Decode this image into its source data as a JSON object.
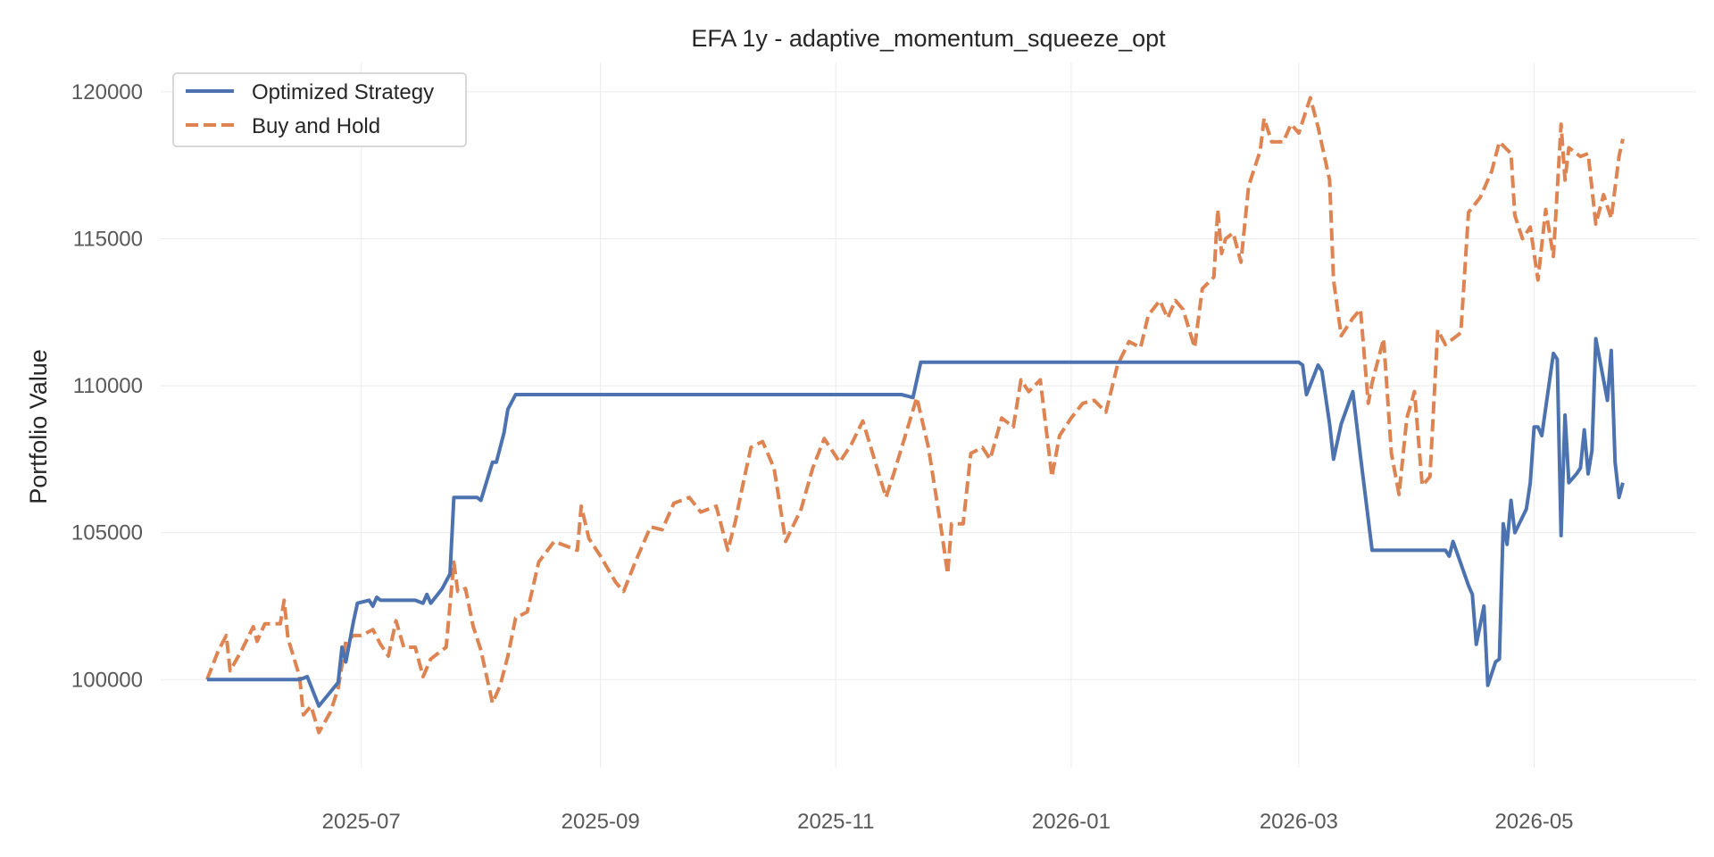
{
  "chart_data": {
    "type": "line",
    "title": "EFA 1y - adaptive_momentum_squeeze_opt",
    "xlabel": "",
    "ylabel": "Portfolio Value",
    "xlim": [
      "2025-05-10",
      "2026-06-12"
    ],
    "ylim": [
      97000,
      121000
    ],
    "grid": true,
    "legend_position": "top-left",
    "x_ticks": [
      "2025-07-01",
      "2025-09-01",
      "2025-11-01",
      "2026-01-01",
      "2026-03-01",
      "2026-05-01"
    ],
    "x_tick_labels": [
      "2025-07",
      "2025-09",
      "2025-11",
      "2026-01",
      "2026-03",
      "2026-05"
    ],
    "y_ticks": [
      100000,
      105000,
      110000,
      115000,
      120000
    ],
    "y_tick_labels": [
      "100000",
      "105000",
      "110000",
      "115000",
      "120000"
    ],
    "series": [
      {
        "name": "Optimized Strategy",
        "color": "#4c72b0",
        "style": "solid",
        "points": [
          [
            "2025-05-22",
            100000
          ],
          [
            "2025-06-15",
            100000
          ],
          [
            "2025-06-17",
            100100
          ],
          [
            "2025-06-20",
            99100
          ],
          [
            "2025-06-25",
            99900
          ],
          [
            "2025-06-26",
            101100
          ],
          [
            "2025-06-27",
            100600
          ],
          [
            "2025-06-29",
            102000
          ],
          [
            "2025-06-30",
            102600
          ],
          [
            "2025-07-03",
            102700
          ],
          [
            "2025-07-04",
            102500
          ],
          [
            "2025-07-05",
            102800
          ],
          [
            "2025-07-06",
            102700
          ],
          [
            "2025-07-15",
            102700
          ],
          [
            "2025-07-17",
            102600
          ],
          [
            "2025-07-18",
            102900
          ],
          [
            "2025-07-19",
            102600
          ],
          [
            "2025-07-22",
            103100
          ],
          [
            "2025-07-24",
            103600
          ],
          [
            "2025-07-25",
            106200
          ],
          [
            "2025-07-31",
            106200
          ],
          [
            "2025-08-01",
            106100
          ],
          [
            "2025-08-04",
            107400
          ],
          [
            "2025-08-05",
            107400
          ],
          [
            "2025-08-07",
            108400
          ],
          [
            "2025-08-08",
            109200
          ],
          [
            "2025-08-10",
            109700
          ],
          [
            "2025-11-18",
            109700
          ],
          [
            "2025-11-21",
            109600
          ],
          [
            "2025-11-23",
            110800
          ],
          [
            "2026-03-01",
            110800
          ],
          [
            "2026-03-02",
            110700
          ],
          [
            "2026-03-03",
            109700
          ],
          [
            "2026-03-06",
            110700
          ],
          [
            "2026-03-07",
            110500
          ],
          [
            "2026-03-09",
            108700
          ],
          [
            "2026-03-10",
            107500
          ],
          [
            "2026-03-12",
            108700
          ],
          [
            "2026-03-15",
            109800
          ],
          [
            "2026-03-17",
            107600
          ],
          [
            "2026-03-20",
            104400
          ],
          [
            "2026-04-08",
            104400
          ],
          [
            "2026-04-09",
            104200
          ],
          [
            "2026-04-10",
            104700
          ],
          [
            "2026-04-14",
            103200
          ],
          [
            "2026-04-15",
            102900
          ],
          [
            "2026-04-16",
            101200
          ],
          [
            "2026-04-18",
            102500
          ],
          [
            "2026-04-19",
            99800
          ],
          [
            "2026-04-21",
            100600
          ],
          [
            "2026-04-22",
            100700
          ],
          [
            "2026-04-23",
            105300
          ],
          [
            "2026-04-24",
            104600
          ],
          [
            "2026-04-25",
            106100
          ],
          [
            "2026-04-26",
            105000
          ],
          [
            "2026-04-29",
            105800
          ],
          [
            "2026-04-30",
            106700
          ],
          [
            "2026-05-01",
            108600
          ],
          [
            "2026-05-02",
            108600
          ],
          [
            "2026-05-03",
            108300
          ],
          [
            "2026-05-06",
            111100
          ],
          [
            "2026-05-07",
            110900
          ],
          [
            "2026-05-08",
            104900
          ],
          [
            "2026-05-09",
            109000
          ],
          [
            "2026-05-10",
            106700
          ],
          [
            "2026-05-12",
            107000
          ],
          [
            "2026-05-13",
            107200
          ],
          [
            "2026-05-14",
            108500
          ],
          [
            "2026-05-15",
            107000
          ],
          [
            "2026-05-16",
            107800
          ],
          [
            "2026-05-17",
            111600
          ],
          [
            "2026-05-20",
            109500
          ],
          [
            "2026-05-21",
            111200
          ],
          [
            "2026-05-22",
            107400
          ],
          [
            "2026-05-23",
            106200
          ],
          [
            "2026-05-24",
            106700
          ]
        ]
      },
      {
        "name": "Buy and Hold",
        "color": "#dd8452",
        "style": "dashed",
        "points": [
          [
            "2025-05-22",
            100000
          ],
          [
            "2025-05-25",
            101000
          ],
          [
            "2025-05-27",
            101500
          ],
          [
            "2025-05-28",
            100300
          ],
          [
            "2025-05-31",
            101000
          ],
          [
            "2025-06-03",
            101800
          ],
          [
            "2025-06-04",
            101300
          ],
          [
            "2025-06-06",
            101900
          ],
          [
            "2025-06-10",
            101900
          ],
          [
            "2025-06-11",
            102700
          ],
          [
            "2025-06-12",
            101400
          ],
          [
            "2025-06-15",
            100100
          ],
          [
            "2025-06-16",
            98800
          ],
          [
            "2025-06-18",
            99100
          ],
          [
            "2025-06-20",
            98200
          ],
          [
            "2025-06-23",
            98900
          ],
          [
            "2025-06-25",
            99700
          ],
          [
            "2025-06-27",
            101300
          ],
          [
            "2025-06-29",
            101500
          ],
          [
            "2025-07-01",
            101500
          ],
          [
            "2025-07-04",
            101700
          ],
          [
            "2025-07-06",
            101200
          ],
          [
            "2025-07-08",
            100800
          ],
          [
            "2025-07-10",
            102000
          ],
          [
            "2025-07-12",
            101100
          ],
          [
            "2025-07-15",
            101100
          ],
          [
            "2025-07-17",
            100100
          ],
          [
            "2025-07-19",
            100700
          ],
          [
            "2025-07-23",
            101100
          ],
          [
            "2025-07-25",
            104000
          ],
          [
            "2025-07-26",
            103000
          ],
          [
            "2025-07-28",
            103100
          ],
          [
            "2025-07-30",
            101800
          ],
          [
            "2025-08-01",
            101000
          ],
          [
            "2025-08-04",
            99200
          ],
          [
            "2025-08-06",
            99800
          ],
          [
            "2025-08-08",
            100800
          ],
          [
            "2025-08-10",
            102100
          ],
          [
            "2025-08-13",
            102300
          ],
          [
            "2025-08-16",
            104000
          ],
          [
            "2025-08-20",
            104700
          ],
          [
            "2025-08-24",
            104500
          ],
          [
            "2025-08-26",
            104400
          ],
          [
            "2025-08-27",
            105900
          ],
          [
            "2025-08-29",
            104800
          ],
          [
            "2025-09-01",
            104200
          ],
          [
            "2025-09-05",
            103300
          ],
          [
            "2025-09-07",
            103000
          ],
          [
            "2025-09-10",
            104000
          ],
          [
            "2025-09-14",
            105200
          ],
          [
            "2025-09-17",
            105100
          ],
          [
            "2025-09-20",
            106000
          ],
          [
            "2025-09-24",
            106200
          ],
          [
            "2025-09-27",
            105700
          ],
          [
            "2025-10-01",
            105900
          ],
          [
            "2025-10-04",
            104400
          ],
          [
            "2025-10-06",
            105400
          ],
          [
            "2025-10-08",
            106700
          ],
          [
            "2025-10-10",
            107900
          ],
          [
            "2025-10-13",
            108100
          ],
          [
            "2025-10-16",
            107200
          ],
          [
            "2025-10-19",
            104700
          ],
          [
            "2025-10-23",
            105800
          ],
          [
            "2025-10-26",
            107200
          ],
          [
            "2025-10-29",
            108200
          ],
          [
            "2025-11-02",
            107400
          ],
          [
            "2025-11-05",
            108000
          ],
          [
            "2025-11-08",
            108800
          ],
          [
            "2025-11-11",
            107500
          ],
          [
            "2025-11-14",
            106200
          ],
          [
            "2025-11-16",
            107000
          ],
          [
            "2025-11-19",
            108300
          ],
          [
            "2025-11-22",
            109600
          ],
          [
            "2025-11-25",
            107900
          ],
          [
            "2025-11-28",
            105400
          ],
          [
            "2025-11-30",
            103600
          ],
          [
            "2025-12-01",
            105300
          ],
          [
            "2025-12-04",
            105300
          ],
          [
            "2025-12-06",
            107700
          ],
          [
            "2025-12-09",
            107900
          ],
          [
            "2025-12-11",
            107500
          ],
          [
            "2025-12-14",
            108900
          ],
          [
            "2025-12-17",
            108600
          ],
          [
            "2025-12-19",
            110200
          ],
          [
            "2025-12-21",
            109800
          ],
          [
            "2025-12-24",
            110200
          ],
          [
            "2025-12-27",
            106900
          ],
          [
            "2025-12-29",
            108300
          ],
          [
            "2026-01-01",
            108900
          ],
          [
            "2026-01-04",
            109400
          ],
          [
            "2026-01-07",
            109500
          ],
          [
            "2026-01-10",
            109100
          ],
          [
            "2026-01-13",
            110700
          ],
          [
            "2026-01-16",
            111500
          ],
          [
            "2026-01-19",
            111300
          ],
          [
            "2026-01-21",
            112400
          ],
          [
            "2026-01-24",
            112900
          ],
          [
            "2026-01-26",
            112300
          ],
          [
            "2026-01-28",
            112900
          ],
          [
            "2026-01-30",
            112600
          ],
          [
            "2026-02-02",
            111300
          ],
          [
            "2026-02-04",
            113300
          ],
          [
            "2026-02-07",
            113700
          ],
          [
            "2026-02-08",
            116000
          ],
          [
            "2026-02-09",
            114500
          ],
          [
            "2026-02-10",
            115000
          ],
          [
            "2026-02-12",
            115200
          ],
          [
            "2026-02-14",
            114200
          ],
          [
            "2026-02-16",
            116800
          ],
          [
            "2026-02-19",
            118000
          ],
          [
            "2026-02-20",
            119100
          ],
          [
            "2026-02-22",
            118300
          ],
          [
            "2026-02-25",
            118300
          ],
          [
            "2026-02-27",
            118900
          ],
          [
            "2026-03-01",
            118600
          ],
          [
            "2026-03-04",
            119800
          ],
          [
            "2026-03-06",
            118800
          ],
          [
            "2026-03-09",
            117000
          ],
          [
            "2026-03-10",
            113600
          ],
          [
            "2026-03-12",
            111700
          ],
          [
            "2026-03-15",
            112300
          ],
          [
            "2026-03-17",
            112600
          ],
          [
            "2026-03-19",
            109400
          ],
          [
            "2026-03-20",
            110100
          ],
          [
            "2026-03-23",
            111600
          ],
          [
            "2026-03-25",
            107700
          ],
          [
            "2026-03-27",
            106300
          ],
          [
            "2026-03-29",
            108900
          ],
          [
            "2026-03-31",
            109800
          ],
          [
            "2026-04-02",
            106600
          ],
          [
            "2026-04-04",
            106900
          ],
          [
            "2026-04-06",
            111900
          ],
          [
            "2026-04-08",
            111400
          ],
          [
            "2026-04-12",
            111800
          ],
          [
            "2026-04-14",
            115900
          ],
          [
            "2026-04-17",
            116400
          ],
          [
            "2026-04-20",
            117300
          ],
          [
            "2026-04-22",
            118300
          ],
          [
            "2026-04-25",
            117900
          ],
          [
            "2026-04-26",
            115800
          ],
          [
            "2026-04-28",
            115000
          ],
          [
            "2026-04-30",
            115400
          ],
          [
            "2026-05-02",
            113600
          ],
          [
            "2026-05-04",
            116000
          ],
          [
            "2026-05-06",
            114400
          ],
          [
            "2026-05-08",
            118900
          ],
          [
            "2026-05-09",
            117000
          ],
          [
            "2026-05-10",
            118100
          ],
          [
            "2026-05-13",
            117800
          ],
          [
            "2026-05-15",
            117900
          ],
          [
            "2026-05-17",
            115500
          ],
          [
            "2026-05-19",
            116500
          ],
          [
            "2026-05-21",
            115700
          ],
          [
            "2026-05-23",
            117800
          ],
          [
            "2026-05-24",
            118400
          ]
        ]
      }
    ]
  }
}
